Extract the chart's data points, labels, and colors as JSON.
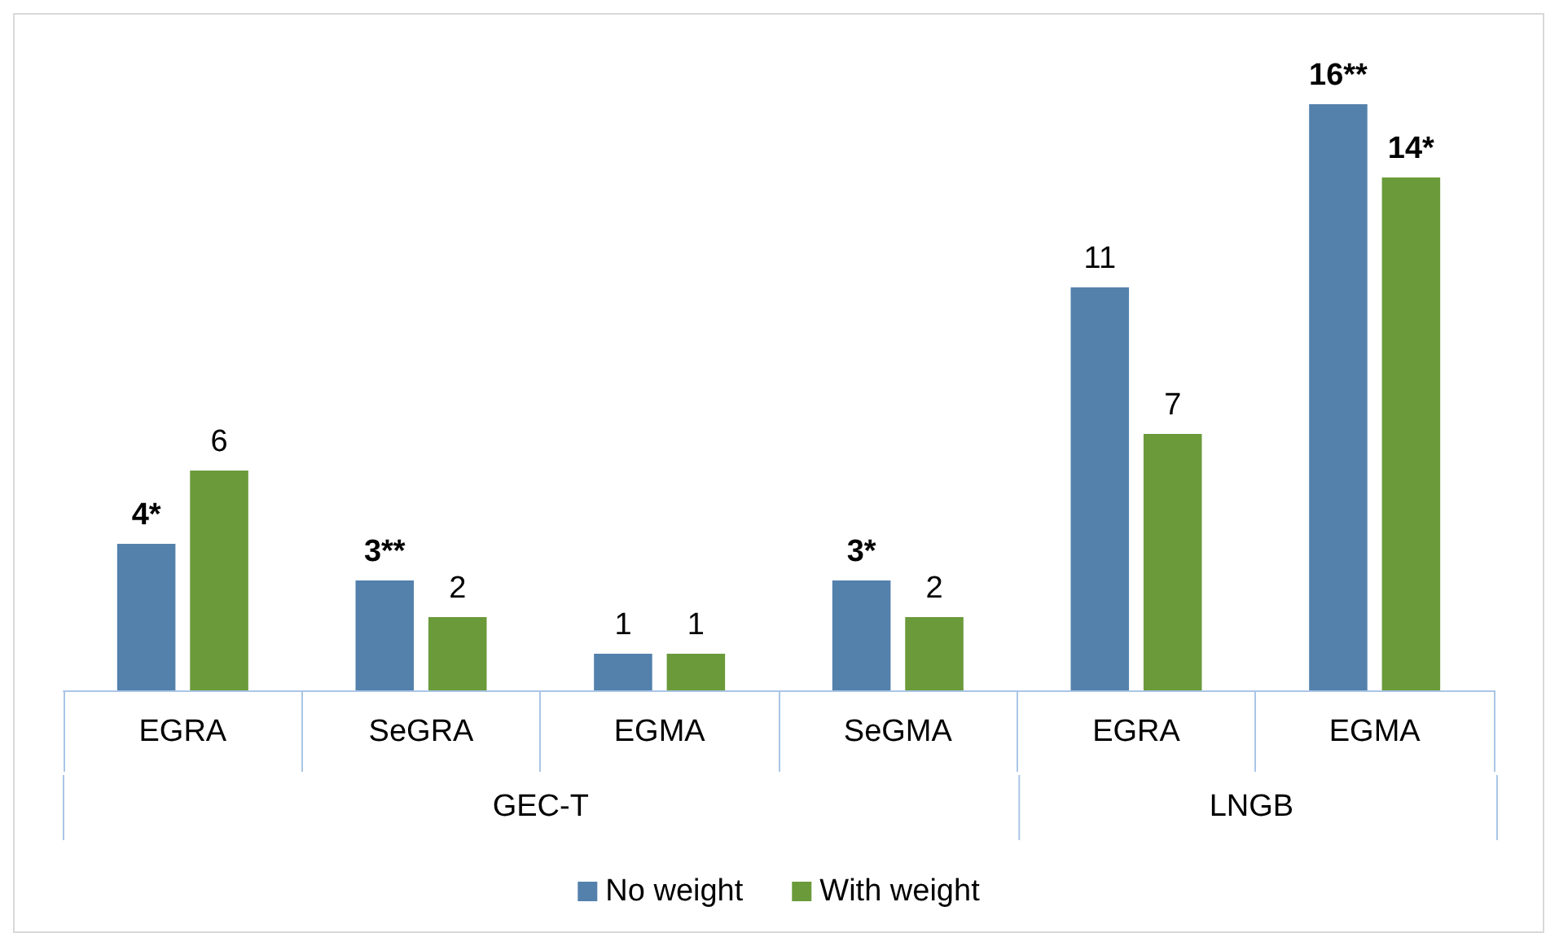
{
  "chart_data": {
    "type": "bar",
    "categories": [
      "EGRA",
      "SeGRA",
      "EGMA",
      "SeGMA",
      "EGRA",
      "EGMA"
    ],
    "series": [
      {
        "name": "No weight",
        "color": "#5381ac",
        "values": [
          4,
          3,
          1,
          3,
          11,
          16
        ],
        "value_labels": [
          "4*",
          "3**",
          "1",
          "3*",
          "11",
          "16**"
        ]
      },
      {
        "name": "With weight",
        "color": "#6a9a3a",
        "values": [
          6,
          2,
          1,
          2,
          7,
          14
        ],
        "value_labels": [
          "6",
          "2",
          "1",
          "2",
          "7",
          "14*"
        ]
      }
    ],
    "annotations": [
      "GEC-T",
      "LNGB"
    ],
    "grid": false,
    "legend": "bottom"
  }
}
